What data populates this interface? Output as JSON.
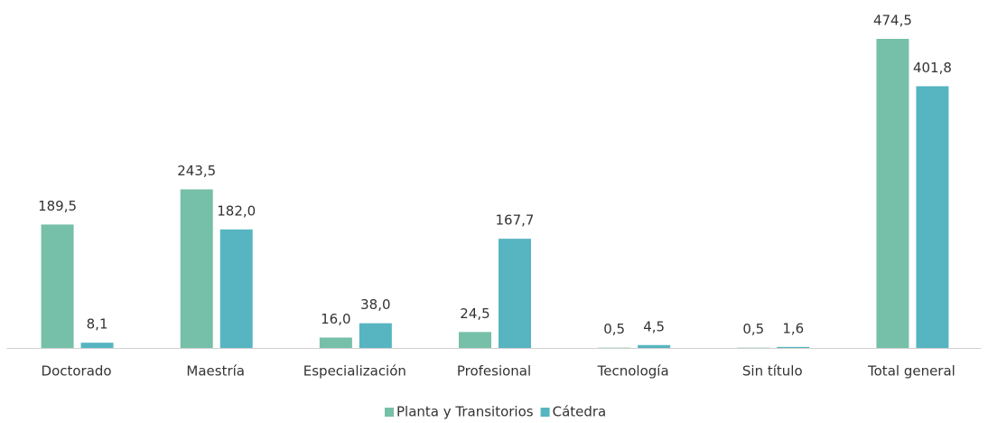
{
  "chart_data": {
    "type": "bar",
    "categories": [
      "Doctorado",
      "Maestría",
      "Especialización",
      "Profesional",
      "Tecnología",
      "Sin título",
      "Total general"
    ],
    "series": [
      {
        "name": "Planta y Transitorios",
        "color": "#76bfa8",
        "values": [
          189.5,
          243.5,
          16.0,
          24.5,
          0.5,
          0.5,
          474.5
        ],
        "value_labels": [
          "189,5",
          "243,5",
          "16,0",
          "24,5",
          "0,5",
          "0,5",
          "474,5"
        ]
      },
      {
        "name": "Cátedra",
        "color": "#56b5c1",
        "values": [
          8.1,
          182.0,
          38.0,
          167.7,
          4.5,
          1.6,
          401.8
        ],
        "value_labels": [
          "8,1",
          "182,0",
          "38,0",
          "167,7",
          "4,5",
          "1,6",
          "401,8"
        ]
      }
    ],
    "legend": "bottom"
  }
}
